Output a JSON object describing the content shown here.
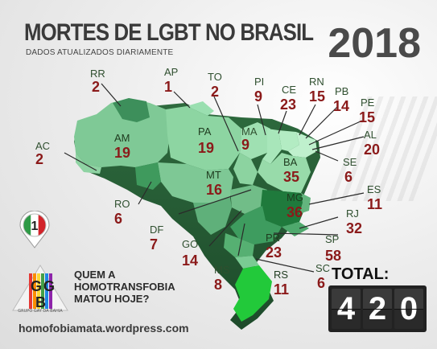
{
  "header": {
    "title": "MORTES DE LGBT NO BRASIL",
    "subtitle": "DADOS ATUALIZADOS DIARIAMENTE",
    "year": "2018"
  },
  "states": [
    {
      "code": "RR",
      "count": "2"
    },
    {
      "code": "AP",
      "count": "1"
    },
    {
      "code": "TO",
      "count": "2"
    },
    {
      "code": "PI",
      "count": "9"
    },
    {
      "code": "CE",
      "count": "23"
    },
    {
      "code": "RN",
      "count": "15"
    },
    {
      "code": "PB",
      "count": "14"
    },
    {
      "code": "PE",
      "count": "15"
    },
    {
      "code": "AL",
      "count": "20"
    },
    {
      "code": "SE",
      "count": "6"
    },
    {
      "code": "BA",
      "count": "35"
    },
    {
      "code": "MA",
      "count": "9"
    },
    {
      "code": "PA",
      "count": "19"
    },
    {
      "code": "AM",
      "count": "19"
    },
    {
      "code": "AC",
      "count": "2"
    },
    {
      "code": "MT",
      "count": "16"
    },
    {
      "code": "RO",
      "count": "6"
    },
    {
      "code": "DF",
      "count": "7"
    },
    {
      "code": "GO",
      "count": "14"
    },
    {
      "code": "MG",
      "count": "36"
    },
    {
      "code": "ES",
      "count": "11"
    },
    {
      "code": "RJ",
      "count": "32"
    },
    {
      "code": "SP",
      "count": "58"
    },
    {
      "code": "PR",
      "count": "23"
    },
    {
      "code": "MS",
      "count": "8"
    },
    {
      "code": "SC",
      "count": "6"
    },
    {
      "code": "RS",
      "count": "11"
    }
  ],
  "badge": {
    "value": "1",
    "icon": "italy-flag-pin-icon",
    "colors": [
      "#2e9a46",
      "#ffffff",
      "#d2232a"
    ]
  },
  "slogan": {
    "line1": "QUEM A",
    "line2": "HOMOTRANSFOBIA",
    "line3": "MATOU HOJE?"
  },
  "logo": {
    "letters": [
      "G",
      "G",
      "B"
    ],
    "caption": "GRUPO GAY DA BAHIA"
  },
  "website": "homofobiamata.wordpress.com",
  "total": {
    "label": "TOTAL:",
    "digits": [
      "4",
      "2",
      "0"
    ]
  },
  "colors": {
    "count": "#8b1a1a",
    "map_base": "#6fc08a",
    "map_dark": "#1f7a3c",
    "map_bright": "#22c93a"
  }
}
